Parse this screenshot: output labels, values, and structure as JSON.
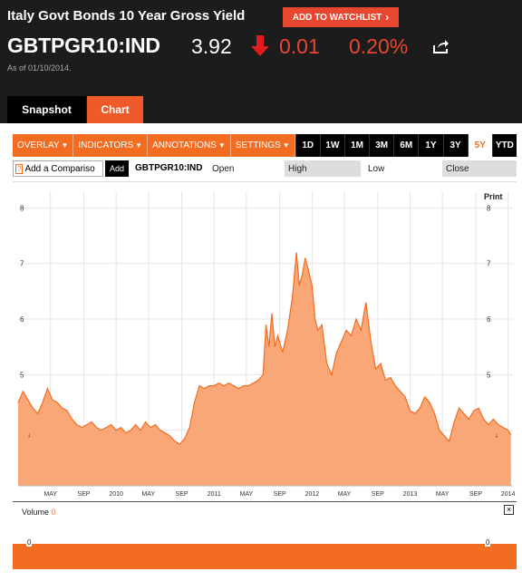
{
  "header": {
    "title": "Italy Govt Bonds 10 Year Gross Yield",
    "watchlist_label": "ADD TO WATCHLIST",
    "ticker": "GBTPGR10:IND",
    "price": "3.92",
    "change": "0.01",
    "change_pct": "0.20%",
    "as_of": "As of 01/10/2014.",
    "change_color": "#e8472f"
  },
  "tabs": [
    {
      "label": "Snapshot",
      "active": false
    },
    {
      "label": "Chart",
      "active": true
    }
  ],
  "toolbar": {
    "menus": [
      {
        "label": "OVERLAY"
      },
      {
        "label": "INDICATORS"
      },
      {
        "label": "ANNOTATIONS"
      },
      {
        "label": "SETTINGS"
      }
    ],
    "ranges": [
      "1D",
      "1W",
      "1M",
      "3M",
      "6M",
      "1Y",
      "3Y",
      "5Y",
      "YTD"
    ],
    "active_range": "5Y",
    "accent": "#f26c21"
  },
  "compare": {
    "placeholder": "Add a Compariso",
    "help_glyph": "?",
    "add_label": "Add",
    "symbol": "GBTPGR10:IND",
    "open_label": "Open",
    "high_label": "High",
    "low_label": "Low",
    "close_label": "Close"
  },
  "print_label": "Print",
  "volume": {
    "label": "Volume",
    "value": "0",
    "close_glyph": "×",
    "tick_left": "0",
    "tick_right": "0"
  },
  "chart_data": {
    "type": "area",
    "x_labels": [
      "MAY",
      "SEP",
      "2010",
      "MAY",
      "SEP",
      "2011",
      "MAY",
      "SEP",
      "2012",
      "MAY",
      "SEP",
      "2013",
      "MAY",
      "SEP",
      "2014"
    ],
    "y_ticks": [
      4,
      5,
      6,
      7,
      8
    ],
    "ylim": [
      3.0,
      8.3
    ],
    "grid": true,
    "fill_color": "#f9a777",
    "line_color": "#f26c21",
    "series": [
      {
        "x": [
          2009.0,
          2009.05,
          2009.1,
          2009.15,
          2009.2,
          2009.25,
          2009.3,
          2009.35,
          2009.4,
          2009.45,
          2009.5,
          2009.55,
          2009.6,
          2009.65,
          2009.7,
          2009.75,
          2009.8,
          2009.85,
          2009.9,
          2009.95,
          2010.0,
          2010.05,
          2010.1,
          2010.15,
          2010.2,
          2010.25,
          2010.3,
          2010.35,
          2010.4,
          2010.45,
          2010.5,
          2010.55,
          2010.6,
          2010.65,
          2010.7,
          2010.75,
          2010.8,
          2010.85,
          2010.9,
          2010.95,
          2011.0,
          2011.05,
          2011.1,
          2011.15,
          2011.2,
          2011.25,
          2011.3,
          2011.35,
          2011.4,
          2011.45,
          2011.5,
          2011.53,
          2011.56,
          2011.59,
          2011.62,
          2011.65,
          2011.7,
          2011.75,
          2011.8,
          2011.84,
          2011.87,
          2011.9,
          2011.93,
          2011.96,
          2012.0,
          2012.03,
          2012.06,
          2012.1,
          2012.15,
          2012.2,
          2012.25,
          2012.3,
          2012.35,
          2012.4,
          2012.45,
          2012.5,
          2012.55,
          2012.6,
          2012.65,
          2012.7,
          2012.75,
          2012.8,
          2012.85,
          2012.9,
          2012.95,
          2013.0,
          2013.05,
          2013.1,
          2013.15,
          2013.2,
          2013.25,
          2013.3,
          2013.35,
          2013.4,
          2013.45,
          2013.5,
          2013.55,
          2013.6,
          2013.65,
          2013.7,
          2013.75,
          2013.8,
          2013.85,
          2013.9,
          2013.95,
          2014.0,
          2014.03
        ],
        "y": [
          4.5,
          4.7,
          4.55,
          4.4,
          4.3,
          4.5,
          4.75,
          4.55,
          4.5,
          4.4,
          4.35,
          4.2,
          4.1,
          4.05,
          4.1,
          4.15,
          4.05,
          4.0,
          4.05,
          4.1,
          4.0,
          4.05,
          3.95,
          4.0,
          4.1,
          4.0,
          4.15,
          4.05,
          4.1,
          4.0,
          3.95,
          3.9,
          3.8,
          3.75,
          3.85,
          4.05,
          4.5,
          4.8,
          4.75,
          4.8,
          4.8,
          4.85,
          4.8,
          4.85,
          4.8,
          4.75,
          4.8,
          4.8,
          4.85,
          4.9,
          5.0,
          5.9,
          5.5,
          6.1,
          5.5,
          5.7,
          5.4,
          5.8,
          6.4,
          7.2,
          6.6,
          6.8,
          7.1,
          6.9,
          6.6,
          6.0,
          5.8,
          5.9,
          5.2,
          5.0,
          5.4,
          5.6,
          5.8,
          5.7,
          6.0,
          5.8,
          6.3,
          5.6,
          5.1,
          5.2,
          4.9,
          4.95,
          4.8,
          4.7,
          4.6,
          4.35,
          4.3,
          4.4,
          4.6,
          4.5,
          4.3,
          4.0,
          3.9,
          3.8,
          4.15,
          4.4,
          4.3,
          4.2,
          4.35,
          4.4,
          4.2,
          4.1,
          4.2,
          4.1,
          4.05,
          4.0,
          3.92
        ]
      }
    ]
  }
}
